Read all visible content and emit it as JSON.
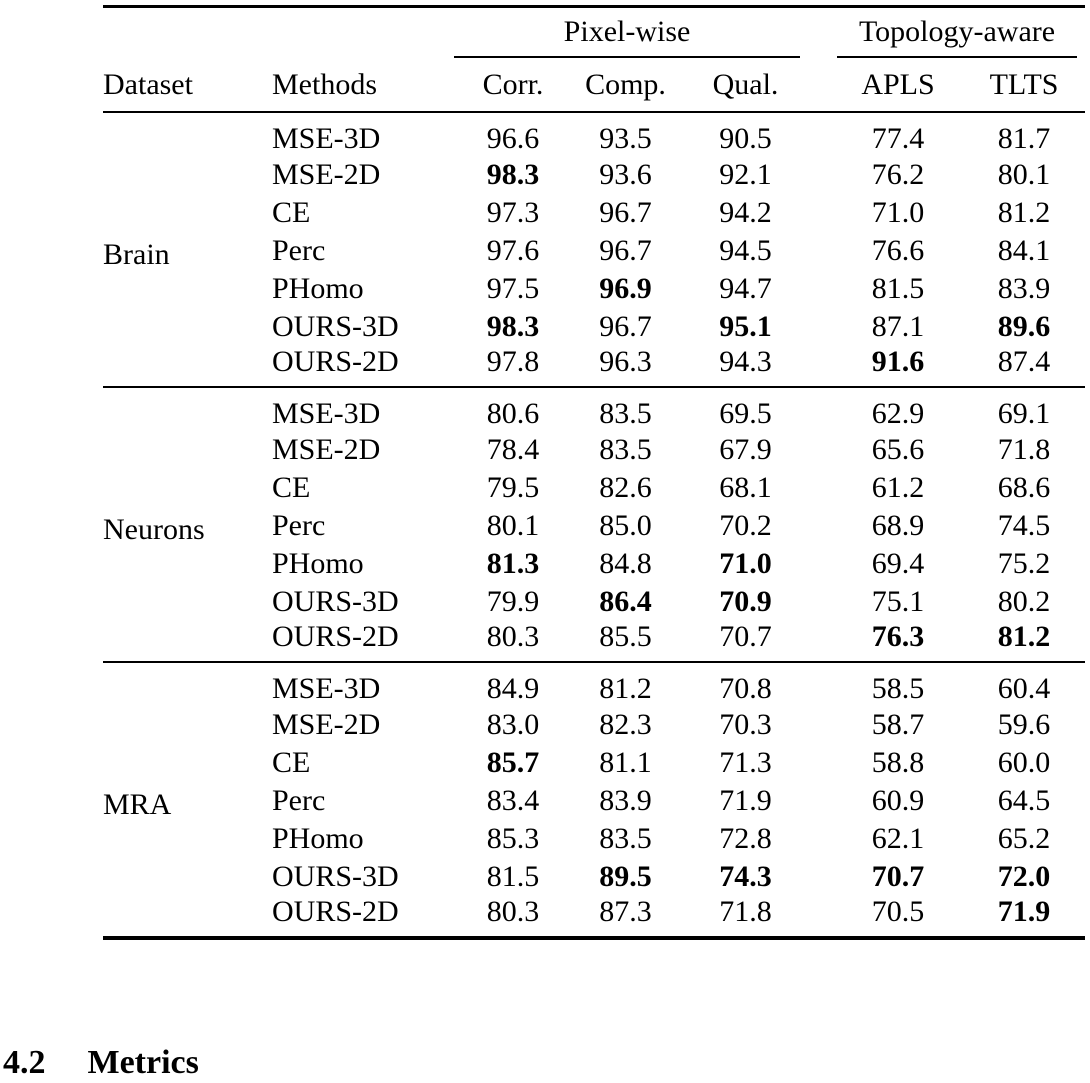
{
  "page": {
    "background": "#ffffff",
    "text_color": "#000000"
  },
  "table": {
    "group_headers": {
      "pixel": {
        "label": "Pixel-wise",
        "span": 3
      },
      "topology": {
        "label": "Topology-aware",
        "span": 2
      }
    },
    "columns": {
      "dataset": "Dataset",
      "methods": "Methods",
      "corr": "Corr.",
      "comp": "Comp.",
      "qual": "Qual.",
      "apls": "APLS",
      "tlts": "TLTS"
    },
    "sections": [
      {
        "dataset": "Brain",
        "rows": [
          {
            "method": "MSE-3D",
            "values": [
              "96.6",
              "93.5",
              "90.5",
              "77.4",
              "81.7"
            ],
            "bold": [
              false,
              false,
              false,
              false,
              false
            ]
          },
          {
            "method": "MSE-2D",
            "values": [
              "98.3",
              "93.6",
              "92.1",
              "76.2",
              "80.1"
            ],
            "bold": [
              true,
              false,
              false,
              false,
              false
            ]
          },
          {
            "method": "CE",
            "values": [
              "97.3",
              "96.7",
              "94.2",
              "71.0",
              "81.2"
            ],
            "bold": [
              false,
              false,
              false,
              false,
              false
            ]
          },
          {
            "method": "Perc",
            "values": [
              "97.6",
              "96.7",
              "94.5",
              "76.6",
              "84.1"
            ],
            "bold": [
              false,
              false,
              false,
              false,
              false
            ]
          },
          {
            "method": "PHomo",
            "values": [
              "97.5",
              "96.9",
              "94.7",
              "81.5",
              "83.9"
            ],
            "bold": [
              false,
              true,
              false,
              false,
              false
            ]
          },
          {
            "method": "OURS-3D",
            "values": [
              "98.3",
              "96.7",
              "95.1",
              "87.1",
              "89.6"
            ],
            "bold": [
              true,
              false,
              true,
              false,
              true
            ]
          },
          {
            "method": "OURS-2D",
            "values": [
              "97.8",
              "96.3",
              "94.3",
              "91.6",
              "87.4"
            ],
            "bold": [
              false,
              false,
              false,
              true,
              false
            ]
          }
        ]
      },
      {
        "dataset": "Neurons",
        "rows": [
          {
            "method": "MSE-3D",
            "values": [
              "80.6",
              "83.5",
              "69.5",
              "62.9",
              "69.1"
            ],
            "bold": [
              false,
              false,
              false,
              false,
              false
            ]
          },
          {
            "method": "MSE-2D",
            "values": [
              "78.4",
              "83.5",
              "67.9",
              "65.6",
              "71.8"
            ],
            "bold": [
              false,
              false,
              false,
              false,
              false
            ]
          },
          {
            "method": "CE",
            "values": [
              "79.5",
              "82.6",
              "68.1",
              "61.2",
              "68.6"
            ],
            "bold": [
              false,
              false,
              false,
              false,
              false
            ]
          },
          {
            "method": "Perc",
            "values": [
              "80.1",
              "85.0",
              "70.2",
              "68.9",
              "74.5"
            ],
            "bold": [
              false,
              false,
              false,
              false,
              false
            ]
          },
          {
            "method": "PHomo",
            "values": [
              "81.3",
              "84.8",
              "71.0",
              "69.4",
              "75.2"
            ],
            "bold": [
              true,
              false,
              true,
              false,
              false
            ]
          },
          {
            "method": "OURS-3D",
            "values": [
              "79.9",
              "86.4",
              "70.9",
              "75.1",
              "80.2"
            ],
            "bold": [
              false,
              true,
              true,
              false,
              false
            ]
          },
          {
            "method": "OURS-2D",
            "values": [
              "80.3",
              "85.5",
              "70.7",
              "76.3",
              "81.2"
            ],
            "bold": [
              false,
              false,
              false,
              true,
              true
            ]
          }
        ]
      },
      {
        "dataset": "MRA",
        "rows": [
          {
            "method": "MSE-3D",
            "values": [
              "84.9",
              "81.2",
              "70.8",
              "58.5",
              "60.4"
            ],
            "bold": [
              false,
              false,
              false,
              false,
              false
            ]
          },
          {
            "method": "MSE-2D",
            "values": [
              "83.0",
              "82.3",
              "70.3",
              "58.7",
              "59.6"
            ],
            "bold": [
              false,
              false,
              false,
              false,
              false
            ]
          },
          {
            "method": "CE",
            "values": [
              "85.7",
              "81.1",
              "71.3",
              "58.8",
              "60.0"
            ],
            "bold": [
              true,
              false,
              false,
              false,
              false
            ]
          },
          {
            "method": "Perc",
            "values": [
              "83.4",
              "83.9",
              "71.9",
              "60.9",
              "64.5"
            ],
            "bold": [
              false,
              false,
              false,
              false,
              false
            ]
          },
          {
            "method": "PHomo",
            "values": [
              "85.3",
              "83.5",
              "72.8",
              "62.1",
              "65.2"
            ],
            "bold": [
              false,
              false,
              false,
              false,
              false
            ]
          },
          {
            "method": "OURS-3D",
            "values": [
              "81.5",
              "89.5",
              "74.3",
              "70.7",
              "72.0"
            ],
            "bold": [
              false,
              true,
              true,
              true,
              true
            ]
          },
          {
            "method": "OURS-2D",
            "values": [
              "80.3",
              "87.3",
              "71.8",
              "70.5",
              "71.9"
            ],
            "bold": [
              false,
              false,
              false,
              false,
              true
            ]
          }
        ]
      }
    ]
  },
  "section_heading": {
    "number": "4.2",
    "title": "Metrics"
  }
}
